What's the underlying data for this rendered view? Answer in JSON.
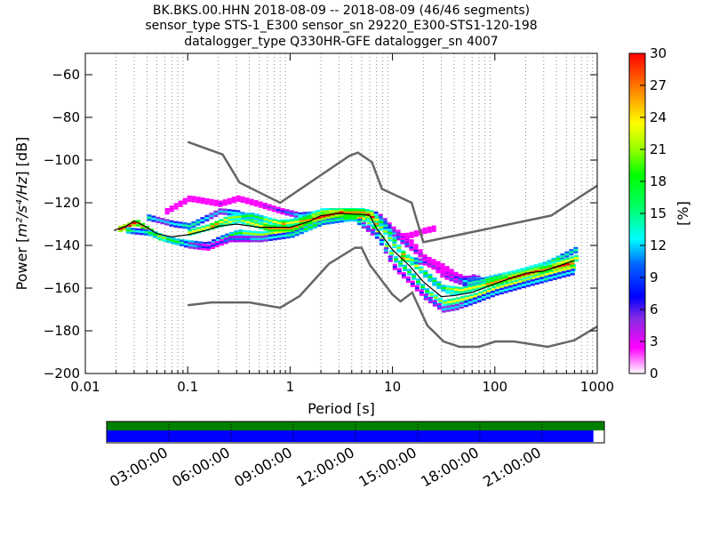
{
  "title_lines": [
    "BK.BKS.00.HHN   2018-08-09 -- 2018-08-09  (46/46 segments)",
    "sensor_type STS-1_E300 sensor_sn 29220_E300-STS1-120-198",
    "datalogger_type Q330HR-GFE datalogger_sn 4007"
  ],
  "chart_data": {
    "type": "heatmap",
    "xlabel": "Period [s]",
    "ylabel_prefix": "Power [",
    "ylabel_math": "m²/s⁴/Hz",
    "ylabel_suffix": "] [dB]",
    "xscale": "log",
    "xlim": [
      0.01,
      1000
    ],
    "ylim": [
      -200,
      -50
    ],
    "x_ticks": [
      0.01,
      0.1,
      1,
      10,
      100,
      1000
    ],
    "x_ticklabels": [
      "0.01",
      "0.1",
      "1",
      "10",
      "100",
      "1000"
    ],
    "y_ticks": [
      -200,
      -180,
      -160,
      -140,
      -120,
      -100,
      -80,
      -60
    ],
    "y_ticklabels": [
      "−200",
      "−180",
      "−160",
      "−140",
      "−120",
      "−100",
      "−80",
      "−60"
    ],
    "grid": "dotted vertical at log-decade subdivisions",
    "colorbar": {
      "label": "[%]",
      "range": [
        0,
        30
      ],
      "ticks": [
        0,
        3,
        6,
        9,
        12,
        15,
        18,
        21,
        24,
        27,
        30
      ]
    },
    "noise_model_high": [
      [
        0.1,
        -91.5
      ],
      [
        0.22,
        -97.4
      ],
      [
        0.32,
        -110.5
      ],
      [
        0.8,
        -120
      ],
      [
        3.8,
        -98
      ],
      [
        4.6,
        -96.5
      ],
      [
        6.3,
        -101
      ],
      [
        7.9,
        -113.5
      ],
      [
        15.4,
        -120
      ],
      [
        20,
        -138.5
      ],
      [
        354.8,
        -126
      ],
      [
        1000,
        -112
      ]
    ],
    "noise_model_low": [
      [
        0.1,
        -168
      ],
      [
        0.17,
        -166.7
      ],
      [
        0.4,
        -166.7
      ],
      [
        0.8,
        -169.2
      ],
      [
        1.24,
        -163.7
      ],
      [
        2.4,
        -148.6
      ],
      [
        4.3,
        -141.1
      ],
      [
        5,
        -141.1
      ],
      [
        6,
        -149
      ],
      [
        10,
        -163
      ],
      [
        12,
        -166.2
      ],
      [
        15.6,
        -162.1
      ],
      [
        21.9,
        -177.5
      ],
      [
        31.6,
        -185
      ],
      [
        45,
        -187.5
      ],
      [
        70,
        -187.5
      ],
      [
        101,
        -185
      ],
      [
        154,
        -185
      ],
      [
        328,
        -187.5
      ],
      [
        600,
        -184.4
      ],
      [
        1000,
        -178
      ]
    ],
    "median_curve": [
      [
        0.019,
        -133
      ],
      [
        0.025,
        -131
      ],
      [
        0.03,
        -128.5
      ],
      [
        0.04,
        -131.5
      ],
      [
        0.05,
        -134.5
      ],
      [
        0.07,
        -136
      ],
      [
        0.1,
        -135
      ],
      [
        0.15,
        -133
      ],
      [
        0.2,
        -131
      ],
      [
        0.3,
        -130
      ],
      [
        0.5,
        -131.5
      ],
      [
        1,
        -131.5
      ],
      [
        1.5,
        -129
      ],
      [
        2,
        -126
      ],
      [
        3,
        -125
      ],
      [
        5,
        -125.5
      ],
      [
        6,
        -126
      ],
      [
        7,
        -132
      ],
      [
        10,
        -142
      ],
      [
        15,
        -150
      ],
      [
        20,
        -157
      ],
      [
        30,
        -164
      ],
      [
        40,
        -163.5
      ],
      [
        60,
        -162
      ],
      [
        100,
        -158
      ],
      [
        200,
        -153
      ],
      [
        300,
        -152
      ],
      [
        400,
        -150
      ],
      [
        600,
        -147
      ]
    ],
    "psd_curves": [
      {
        "name": "",
        "points": [
          [
            0.06,
            -124
          ],
          [
            0.1,
            -118
          ],
          [
            0.2,
            -120.5
          ],
          [
            0.3,
            -118
          ],
          [
            0.5,
            -121
          ],
          [
            0.8,
            -124
          ],
          [
            1.2,
            -126
          ],
          [
            2,
            -125
          ],
          [
            3,
            -124
          ],
          [
            5,
            -124
          ],
          [
            7,
            -126
          ],
          [
            10,
            -133
          ],
          [
            15,
            -139
          ],
          [
            20,
            -146
          ],
          [
            30,
            -150
          ],
          [
            40,
            -154
          ],
          [
            50,
            -156
          ],
          [
            60,
            -155
          ],
          [
            70,
            -156
          ]
        ]
      },
      {
        "name": "",
        "points": [
          [
            0.04,
            -127
          ],
          [
            0.07,
            -130
          ],
          [
            0.1,
            -131
          ],
          [
            0.15,
            -127
          ],
          [
            0.2,
            -124
          ],
          [
            0.3,
            -125
          ],
          [
            0.5,
            -130
          ],
          [
            1,
            -129
          ],
          [
            2,
            -124
          ],
          [
            4,
            -124
          ],
          [
            6,
            -125
          ],
          [
            8,
            -131
          ],
          [
            12,
            -138
          ],
          [
            20,
            -146
          ],
          [
            30,
            -154
          ],
          [
            50,
            -158
          ],
          [
            80,
            -156
          ],
          [
            150,
            -153
          ],
          [
            300,
            -149
          ],
          [
            600,
            -142
          ]
        ]
      },
      {
        "name": "",
        "points": [
          [
            0.019,
            -133
          ],
          [
            0.025,
            -131
          ],
          [
            0.03,
            -129
          ],
          [
            0.04,
            -133
          ],
          [
            0.05,
            -136
          ],
          [
            0.07,
            -138
          ],
          [
            0.1,
            -139
          ],
          [
            0.15,
            -140
          ],
          [
            0.2,
            -137
          ],
          [
            0.3,
            -134
          ],
          [
            0.5,
            -135
          ],
          [
            1,
            -133
          ],
          [
            2,
            -128
          ],
          [
            3,
            -127
          ],
          [
            5,
            -127
          ],
          [
            7,
            -134
          ],
          [
            10,
            -146
          ],
          [
            15,
            -154
          ],
          [
            20,
            -161
          ],
          [
            30,
            -167
          ],
          [
            40,
            -166
          ],
          [
            60,
            -164
          ],
          [
            100,
            -160
          ],
          [
            200,
            -156
          ],
          [
            400,
            -152
          ],
          [
            600,
            -150
          ]
        ]
      },
      {
        "name": "",
        "points": [
          [
            0.025,
            -133
          ],
          [
            0.04,
            -134
          ],
          [
            0.06,
            -137
          ],
          [
            0.1,
            -140
          ],
          [
            0.15,
            -141
          ],
          [
            0.25,
            -137
          ],
          [
            0.5,
            -137
          ],
          [
            1,
            -135
          ],
          [
            2,
            -129
          ],
          [
            4,
            -127
          ],
          [
            7,
            -136
          ],
          [
            10,
            -150
          ],
          [
            15,
            -158
          ],
          [
            20,
            -164
          ],
          [
            30,
            -170
          ],
          [
            40,
            -169
          ],
          [
            60,
            -166
          ],
          [
            100,
            -162
          ],
          [
            200,
            -158
          ],
          [
            600,
            -152
          ]
        ]
      },
      {
        "name": "",
        "points": [
          [
            0.1,
            -134
          ],
          [
            0.2,
            -130
          ],
          [
            0.3,
            -128
          ],
          [
            0.6,
            -132
          ],
          [
            1,
            -132
          ],
          [
            2,
            -126
          ],
          [
            5,
            -125
          ],
          [
            8,
            -133
          ],
          [
            10,
            -140
          ],
          [
            15,
            -148
          ],
          [
            25,
            -158
          ],
          [
            35,
            -162
          ],
          [
            50,
            -161
          ],
          [
            80,
            -158
          ],
          [
            150,
            -154
          ],
          [
            300,
            -150
          ],
          [
            600,
            -146
          ]
        ]
      },
      {
        "name": "",
        "points": [
          [
            0.15,
            -132
          ],
          [
            0.25,
            -127
          ],
          [
            0.4,
            -126
          ],
          [
            0.8,
            -130
          ],
          [
            1.5,
            -128
          ],
          [
            3,
            -124.5
          ],
          [
            5,
            -124.5
          ],
          [
            8,
            -130
          ],
          [
            12,
            -144
          ],
          [
            20,
            -153
          ],
          [
            30,
            -160
          ],
          [
            45,
            -161
          ],
          [
            70,
            -159
          ],
          [
            120,
            -156
          ],
          [
            250,
            -152
          ],
          [
            600,
            -148
          ]
        ]
      },
      {
        "name": "",
        "points": [
          [
            12,
            -136
          ],
          [
            15,
            -135
          ],
          [
            20,
            -133
          ],
          [
            25,
            -132
          ]
        ]
      },
      {
        "name": "",
        "points": [
          [
            12,
            -146
          ],
          [
            20,
            -148
          ],
          [
            30,
            -152
          ],
          [
            40,
            -155
          ],
          [
            50,
            -157
          ]
        ]
      }
    ]
  },
  "timeline": {
    "ticks": [
      "03:00:00",
      "06:00:00",
      "09:00:00",
      "12:00:00",
      "15:00:00",
      "18:00:00",
      "21:00:00"
    ],
    "coverage_fraction": 0.978,
    "colors": {
      "top_bar": "#008000",
      "bottom_bar": "#0000ff"
    }
  }
}
